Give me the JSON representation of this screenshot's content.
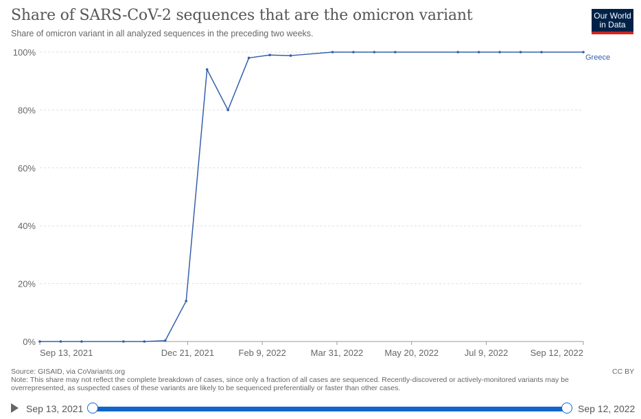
{
  "header": {
    "title": "Share of SARS-CoV-2 sequences that are the omicron variant",
    "subtitle": "Share of omicron variant in all analyzed sequences in the preceding two weeks.",
    "logo_line1": "Our World",
    "logo_line2": "in Data"
  },
  "chart_data": {
    "type": "line",
    "title": "Share of SARS-CoV-2 sequences that are the omicron variant",
    "subtitle": "Share of omicron variant in all analyzed sequences in the preceding two weeks.",
    "xlabel": "",
    "ylabel": "",
    "ylim": [
      0,
      100
    ],
    "y_ticks": [
      "0%",
      "20%",
      "40%",
      "60%",
      "80%",
      "100%"
    ],
    "x_ticks": [
      "Sep 13, 2021",
      "Dec 21, 2021",
      "Feb 9, 2022",
      "Mar 31, 2022",
      "May 20, 2022",
      "Jul 9, 2022",
      "Sep 12, 2022"
    ],
    "x_range": [
      "2021-09-13",
      "2022-09-12"
    ],
    "grid": "horizontal dashed",
    "series": [
      {
        "name": "Greece",
        "color": "#3360a9",
        "points": [
          [
            "2021-09-13",
            0
          ],
          [
            "2021-09-27",
            0
          ],
          [
            "2021-10-11",
            0
          ],
          [
            "2021-11-08",
            0
          ],
          [
            "2021-11-22",
            0
          ],
          [
            "2021-12-06",
            0.3
          ],
          [
            "2021-12-20",
            14
          ],
          [
            "2022-01-03",
            94
          ],
          [
            "2022-01-17",
            80
          ],
          [
            "2022-01-31",
            98
          ],
          [
            "2022-02-14",
            99
          ],
          [
            "2022-02-28",
            98.8
          ],
          [
            "2022-03-28",
            100
          ],
          [
            "2022-04-11",
            100
          ],
          [
            "2022-04-25",
            100
          ],
          [
            "2022-05-09",
            100
          ],
          [
            "2022-06-20",
            100
          ],
          [
            "2022-07-04",
            100
          ],
          [
            "2022-07-18",
            100
          ],
          [
            "2022-08-01",
            100
          ],
          [
            "2022-08-15",
            100
          ],
          [
            "2022-09-12",
            100
          ]
        ]
      }
    ]
  },
  "footer": {
    "source": "Source: GISAID, via CoVariants.org",
    "note": "Note: This share may not reflect the complete breakdown of cases, since only a fraction of all cases are sequenced. Recently-discovered or actively-monitored variants may be overrepresented, as suspected cases of these variants are likely to be sequenced preferentially or faster than other cases.",
    "license": "CC BY"
  },
  "timeline": {
    "start_label": "Sep 13, 2021",
    "end_label": "Sep 12, 2022"
  }
}
